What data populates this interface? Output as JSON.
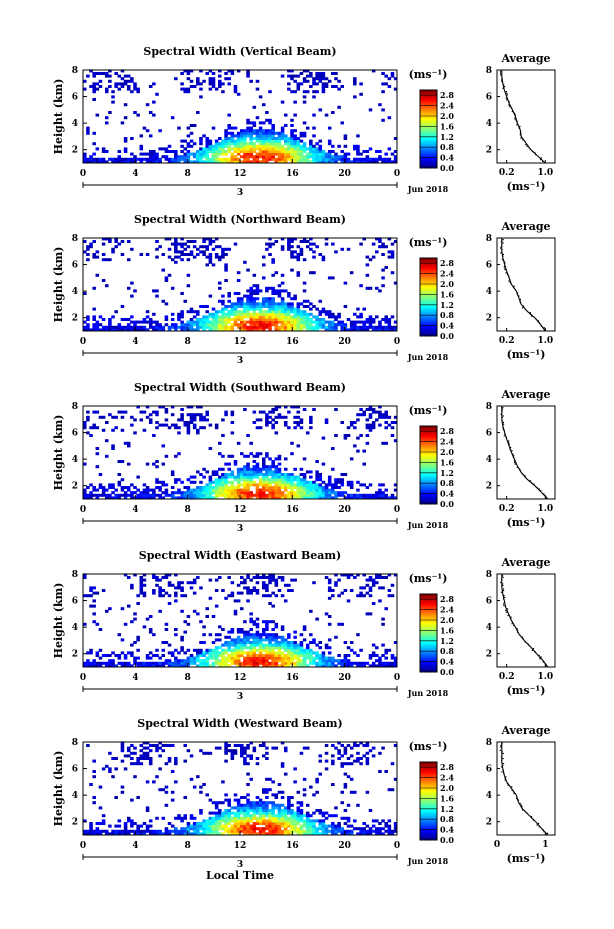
{
  "figure": {
    "bottom_label": "Local Time",
    "date_label": "Jun 2018",
    "day_label": "3",
    "colorbar": {
      "unit_label": "(ms⁻¹)",
      "ticks": [
        "0.0",
        "0.4",
        "0.8",
        "1.2",
        "1.6",
        "2.0",
        "2.4",
        "2.8"
      ],
      "range": [
        0.0,
        3.0
      ],
      "colormap": [
        "#00007f",
        "#0000ff",
        "#0080ff",
        "#00ffff",
        "#80ff80",
        "#ffff00",
        "#ff8000",
        "#ff0000",
        "#7f0000"
      ]
    }
  },
  "chart_data": [
    {
      "type": "heatmap",
      "panel": "main",
      "title": "Spectral Width (Vertical Beam)",
      "ylabel": "Height (km)",
      "xlim": [
        0,
        24
      ],
      "ylim": [
        1,
        8
      ],
      "xticks": [
        "0",
        "4",
        "8",
        "12",
        "16",
        "20",
        "0"
      ],
      "yticks": [
        "2",
        "4",
        "6",
        "8"
      ],
      "profile": {
        "title": "Average",
        "xlabel": "(ms⁻¹)",
        "xticks": [
          "0.2",
          "1.0"
        ],
        "xtick_values": [
          0.2,
          1.0
        ],
        "xlim": [
          0.0,
          1.2
        ],
        "yticks": [
          "2",
          "4",
          "6",
          "8"
        ],
        "ylim": [
          1,
          8
        ],
        "height": [
          1.0,
          1.5,
          2.0,
          2.5,
          3.0,
          3.5,
          4.0,
          4.5,
          5.0,
          5.5,
          6.0,
          6.5,
          7.0,
          7.5,
          8.0
        ],
        "width": [
          1.0,
          0.85,
          0.7,
          0.6,
          0.5,
          0.48,
          0.42,
          0.38,
          0.32,
          0.25,
          0.2,
          0.15,
          0.12,
          0.1,
          0.1
        ]
      }
    },
    {
      "type": "heatmap",
      "panel": "main",
      "title": "Spectral Width (Northward Beam)",
      "ylabel": "Height (km)",
      "xlim": [
        0,
        24
      ],
      "ylim": [
        1,
        8
      ],
      "xticks": [
        "0",
        "4",
        "8",
        "12",
        "16",
        "20",
        "0"
      ],
      "yticks": [
        "2",
        "4",
        "6",
        "8"
      ],
      "profile": {
        "title": "Average",
        "xlabel": "(ms⁻¹)",
        "xticks": [
          "0.2",
          "1.0"
        ],
        "xtick_values": [
          0.2,
          1.0
        ],
        "xlim": [
          0.0,
          1.2
        ],
        "yticks": [
          "2",
          "4",
          "6",
          "8"
        ],
        "ylim": [
          1,
          8
        ],
        "height": [
          1.0,
          1.5,
          2.0,
          2.5,
          3.0,
          3.5,
          4.0,
          4.5,
          5.0,
          5.5,
          6.0,
          6.5,
          7.0,
          7.5,
          8.0
        ],
        "width": [
          1.0,
          0.9,
          0.78,
          0.62,
          0.5,
          0.45,
          0.4,
          0.3,
          0.25,
          0.2,
          0.16,
          0.12,
          0.1,
          0.1,
          0.1
        ]
      }
    },
    {
      "type": "heatmap",
      "panel": "main",
      "title": "Spectral Width (Southward Beam)",
      "ylabel": "Height (km)",
      "xlim": [
        0,
        24
      ],
      "ylim": [
        1,
        8
      ],
      "xticks": [
        "0",
        "4",
        "8",
        "12",
        "16",
        "20",
        "0"
      ],
      "yticks": [
        "2",
        "4",
        "6",
        "8"
      ],
      "profile": {
        "title": "Average",
        "xlabel": "(ms⁻¹)",
        "xticks": [
          "0.2",
          "1.0"
        ],
        "xtick_values": [
          0.2,
          1.0
        ],
        "xlim": [
          0.0,
          1.2
        ],
        "yticks": [
          "2",
          "4",
          "6",
          "8"
        ],
        "ylim": [
          1,
          8
        ],
        "height": [
          1.0,
          1.5,
          2.0,
          2.5,
          3.0,
          3.5,
          4.0,
          4.5,
          5.0,
          5.5,
          6.0,
          6.5,
          7.0,
          7.5,
          8.0
        ],
        "width": [
          1.05,
          0.92,
          0.78,
          0.62,
          0.5,
          0.42,
          0.36,
          0.3,
          0.25,
          0.2,
          0.16,
          0.12,
          0.1,
          0.1,
          0.1
        ]
      }
    },
    {
      "type": "heatmap",
      "panel": "main",
      "title": "Spectral Width (Eastward Beam)",
      "ylabel": "Height (km)",
      "xlim": [
        0,
        24
      ],
      "ylim": [
        1,
        8
      ],
      "xticks": [
        "0",
        "4",
        "8",
        "12",
        "16",
        "20",
        "0"
      ],
      "yticks": [
        "2",
        "4",
        "6",
        "8"
      ],
      "profile": {
        "title": "Average",
        "xlabel": "(ms⁻¹)",
        "xticks": [
          "0.2",
          "1.0"
        ],
        "xtick_values": [
          0.2,
          1.0
        ],
        "xlim": [
          0.0,
          1.2
        ],
        "yticks": [
          "2",
          "4",
          "6",
          "8"
        ],
        "ylim": [
          1,
          8
        ],
        "height": [
          1.0,
          1.5,
          2.0,
          2.5,
          3.0,
          3.5,
          4.0,
          4.5,
          5.0,
          5.5,
          6.0,
          6.5,
          7.0,
          7.5,
          8.0
        ],
        "width": [
          1.05,
          0.95,
          0.82,
          0.7,
          0.56,
          0.45,
          0.38,
          0.3,
          0.24,
          0.18,
          0.15,
          0.12,
          0.1,
          0.1,
          0.1
        ]
      }
    },
    {
      "type": "heatmap",
      "panel": "main",
      "title": "Spectral Width (Westward Beam)",
      "ylabel": "Height (km)",
      "xlim": [
        0,
        24
      ],
      "ylim": [
        1,
        8
      ],
      "xticks": [
        "0",
        "4",
        "8",
        "12",
        "16",
        "20",
        "0"
      ],
      "yticks": [
        "2",
        "4",
        "6",
        "8"
      ],
      "profile": {
        "title": "Average",
        "xlabel": "(ms⁻¹)",
        "xticks": [
          "0",
          "1"
        ],
        "xtick_values": [
          0.0,
          1.0
        ],
        "xlim": [
          0.0,
          1.2
        ],
        "yticks": [
          "2",
          "4",
          "6",
          "8"
        ],
        "ylim": [
          1,
          8
        ],
        "height": [
          1.0,
          1.5,
          2.0,
          2.5,
          3.0,
          3.5,
          4.0,
          4.5,
          5.0,
          5.5,
          6.0,
          6.5,
          7.0,
          7.5,
          8.0
        ],
        "width": [
          1.05,
          0.92,
          0.8,
          0.66,
          0.52,
          0.44,
          0.4,
          0.3,
          0.2,
          0.15,
          0.12,
          0.1,
          0.1,
          0.1,
          0.1
        ]
      }
    }
  ]
}
